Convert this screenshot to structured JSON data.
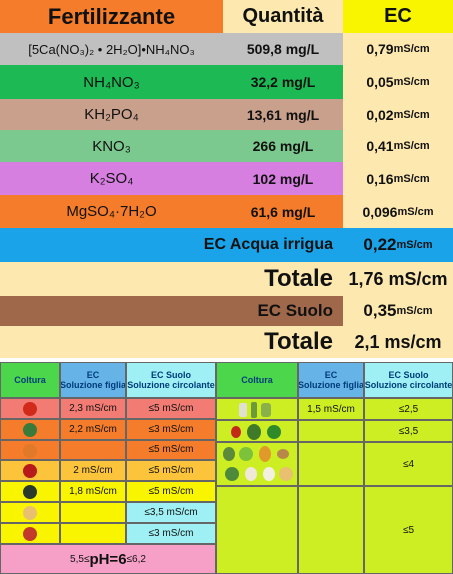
{
  "top_table": {
    "headers": {
      "fertilizer": "Fertilizzante",
      "quantity": "Quantità",
      "ec": "EC"
    },
    "rows": [
      {
        "name": "[5Ca(NO₃)₂ • 2H₂O]•NH₄NO₃",
        "quantity": "509,8 mg/L",
        "ec_value": "0,79",
        "ec_unit": " mS/cm",
        "color": "#c0c0c0"
      },
      {
        "name": "NH₄NO₃",
        "quantity": "32,2 mg/L",
        "ec_value": "0,05",
        "ec_unit": " mS/cm",
        "color": "#1db954"
      },
      {
        "name": "KH₂PO₄",
        "quantity": "13,61 mg/L",
        "ec_value": "0,02",
        "ec_unit": " mS/cm",
        "color": "#c9a08c"
      },
      {
        "name": "KNO₃",
        "quantity": "266 mg/L",
        "ec_value": "0,41",
        "ec_unit": " mS/cm",
        "color": "#7cc98f"
      },
      {
        "name": "K₂SO₄",
        "quantity": "102 mg/L",
        "ec_value": "0,16",
        "ec_unit": " mS/cm",
        "color": "#d77fe0"
      },
      {
        "name": "MgSO₄·7H₂O",
        "quantity": "61,6 mg/L",
        "ec_value": "0,096",
        "ec_unit": " mS/cm",
        "color": "#f47c2a"
      }
    ],
    "irrigation": {
      "label": "EC Acqua irrigua",
      "value": "0,22",
      "unit": " mS/cm"
    },
    "total1": {
      "label": "Totale",
      "value": "1,76 mS/cm"
    },
    "soil": {
      "label": "EC Suolo",
      "value": "0,35",
      "unit": " mS/cm"
    },
    "total2": {
      "label": "Totale",
      "value": "2,1 ms/cm"
    }
  },
  "bottom_table": {
    "left_headers": {
      "crop": "Coltura",
      "ec_title": "EC",
      "ec_sub": "Soluzione figlia",
      "soil_title": "EC Suolo",
      "soil_sub": "Soluzione circolante"
    },
    "right_headers": {
      "crop": "Coltura",
      "ec_title": "EC",
      "ec_sub": "Soluzione figlia",
      "soil_title": "EC Suolo",
      "soil_sub": "Soluzione circolante"
    },
    "left_rows": [
      {
        "ec": "2,3 mS/cm",
        "soil": "≤5 mS/cm"
      },
      {
        "ec": "2,2 mS/cm",
        "soil": "≤3 mS/cm"
      },
      {
        "ec": "",
        "soil": "≤5 mS/cm"
      },
      {
        "ec": "2 mS/cm",
        "soil": "≤5 mS/cm"
      },
      {
        "ec": "1,8 mS/cm",
        "soil": "≤5 mS/cm"
      },
      {
        "ec": "",
        "soil": "≤3,5 mS/cm"
      },
      {
        "ec": "",
        "soil": "≤3 mS/cm"
      }
    ],
    "ph_note": {
      "prefix": "5,5≤",
      "main": "pH=6",
      "suffix": "≤6,2"
    },
    "right_rows": [
      {
        "ec": "1,5 mS/cm",
        "soil": "≤2,5"
      },
      {
        "ec": "",
        "soil": "≤3,5"
      },
      {
        "ec": "",
        "soil": "≤4"
      },
      {
        "ec": "",
        "soil": "≤5"
      }
    ],
    "colors": {
      "header_green": "#4cd64c",
      "header_blue": "#66b3e8",
      "header_cyan": "#9ef0f4",
      "lime": "#ccee22"
    }
  }
}
